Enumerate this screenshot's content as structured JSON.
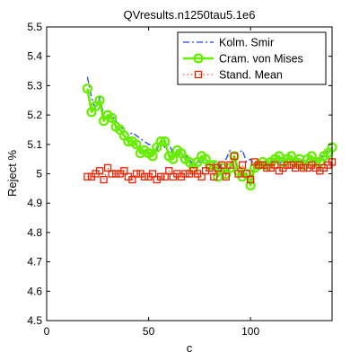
{
  "chart_data": {
    "type": "line",
    "title": "QVresults.n1250tau5.1e6",
    "xlabel": "c",
    "ylabel": "Reject %",
    "xlim": [
      0,
      140
    ],
    "ylim": [
      4.5,
      5.5
    ],
    "xticks": [
      0,
      50,
      100
    ],
    "yticks": [
      4.5,
      4.6,
      4.7,
      4.8,
      4.9,
      5,
      5.1,
      5.2,
      5.3,
      5.4,
      5.5
    ],
    "grid": false,
    "legend_position": "top-right",
    "x": [
      20,
      22,
      24,
      26,
      28,
      30,
      32,
      34,
      36,
      38,
      40,
      42,
      44,
      46,
      48,
      50,
      52,
      54,
      56,
      58,
      60,
      62,
      64,
      66,
      68,
      70,
      72,
      74,
      76,
      78,
      80,
      82,
      84,
      86,
      88,
      90,
      92,
      94,
      96,
      98,
      100,
      102,
      104,
      106,
      108,
      110,
      112,
      114,
      116,
      118,
      120,
      122,
      124,
      126,
      128,
      130,
      132,
      134,
      136,
      138,
      140
    ],
    "series": [
      {
        "name": "Kolm. Smir",
        "color": "#1f3fff",
        "style": "dash-dot",
        "values": [
          5.33,
          5.26,
          5.22,
          5.26,
          5.2,
          5.19,
          5.2,
          5.18,
          5.16,
          5.15,
          5.13,
          5.14,
          5.13,
          5.12,
          5.11,
          5.1,
          5.1,
          5.08,
          5.11,
          5.09,
          5.1,
          5.07,
          5.06,
          5.07,
          5.06,
          5.05,
          5.03,
          5.04,
          5.04,
          5.05,
          5.04,
          5.04,
          5.01,
          5.04,
          5.05,
          5.08,
          5.07,
          5.07,
          5.08,
          5.04,
          5.05,
          5.03,
          5.04,
          5.04,
          5.04,
          5.05,
          5.05,
          5.03,
          5.05,
          5.04,
          5.05,
          5.03,
          5.04,
          5.05,
          5.04,
          5.05,
          5.04,
          5.06,
          5.06,
          5.08,
          5.09
        ]
      },
      {
        "name": "Cram. von Mises",
        "color": "#66ee00",
        "style": "solid-circle",
        "values": [
          5.29,
          5.21,
          5.23,
          5.25,
          5.18,
          5.2,
          5.19,
          5.16,
          5.15,
          5.13,
          5.11,
          5.11,
          5.1,
          5.07,
          5.08,
          5.07,
          5.06,
          5.09,
          5.11,
          5.11,
          5.06,
          5.05,
          5.08,
          5.07,
          5.05,
          5.04,
          5.02,
          5.04,
          5.06,
          5.05,
          5.03,
          5.03,
          4.99,
          5.02,
          5.0,
          5.02,
          5.06,
          5.01,
          4.99,
          5.0,
          4.96,
          5.02,
          5.03,
          5.04,
          5.03,
          5.04,
          5.05,
          5.06,
          5.04,
          5.05,
          5.06,
          5.04,
          5.05,
          5.03,
          5.05,
          5.06,
          5.04,
          5.04,
          5.06,
          5.07,
          5.09
        ]
      },
      {
        "name": "Stand. Mean",
        "color": "#ee2200",
        "style": "dotted-square",
        "values": [
          4.99,
          4.99,
          5.0,
          5.01,
          4.98,
          5.02,
          5.0,
          5.0,
          5.0,
          5.01,
          4.99,
          4.98,
          5.0,
          5.0,
          4.99,
          4.99,
          5.0,
          4.98,
          4.99,
          4.99,
          5.01,
          4.99,
          5.0,
          4.99,
          5.0,
          5.0,
          5.01,
          5.0,
          4.99,
          5.01,
          5.02,
          4.99,
          5.02,
          5.03,
          4.99,
          5.03,
          5.06,
          5.0,
          5.03,
          5.0,
          4.98,
          5.04,
          5.03,
          5.03,
          5.02,
          5.02,
          5.03,
          5.01,
          5.02,
          5.03,
          5.03,
          5.02,
          5.03,
          5.02,
          5.02,
          5.03,
          5.02,
          5.01,
          5.02,
          5.03,
          5.04
        ]
      }
    ]
  }
}
